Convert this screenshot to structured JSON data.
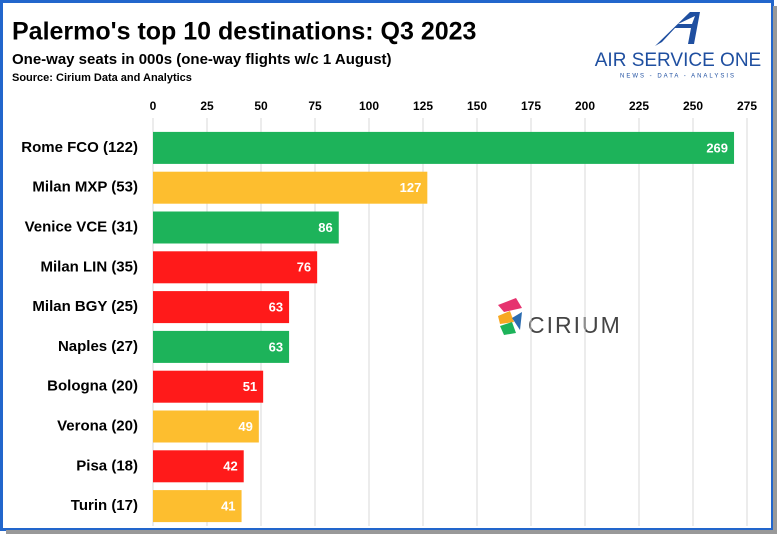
{
  "chart_data": {
    "type": "bar",
    "orientation": "horizontal",
    "title": "Palermo's top 10 destinations: Q3 2023",
    "subtitle": "One-way seats in 000s (one-way flights w/c 1 August)",
    "source": "Source: Cirium Data and Analytics",
    "categories": [
      "Rome FCO (122)",
      "Milan MXP (53)",
      "Venice VCE (31)",
      "Milan LIN (35)",
      "Milan BGY (25)",
      "Naples (27)",
      "Bologna (20)",
      "Verona (20)",
      "Pisa (18)",
      "Turin (17)"
    ],
    "values": [
      269,
      127,
      86,
      76,
      63,
      63,
      51,
      49,
      42,
      41
    ],
    "colors": [
      "#1db35a",
      "#fdbe2f",
      "#1db35a",
      "#ff1a1a",
      "#ff1a1a",
      "#1db35a",
      "#ff1a1a",
      "#fdbe2f",
      "#ff1a1a",
      "#fdbe2f"
    ],
    "xlim": [
      0,
      275
    ],
    "xticks": [
      0,
      25,
      50,
      75,
      100,
      125,
      150,
      175,
      200,
      225,
      250,
      275
    ],
    "grid": true
  },
  "logos": {
    "air_service_one": {
      "name": "AIR SERVICE ONE",
      "tagline": "NEWS - DATA - ANALYSIS"
    },
    "cirium": "CIRIUM"
  }
}
